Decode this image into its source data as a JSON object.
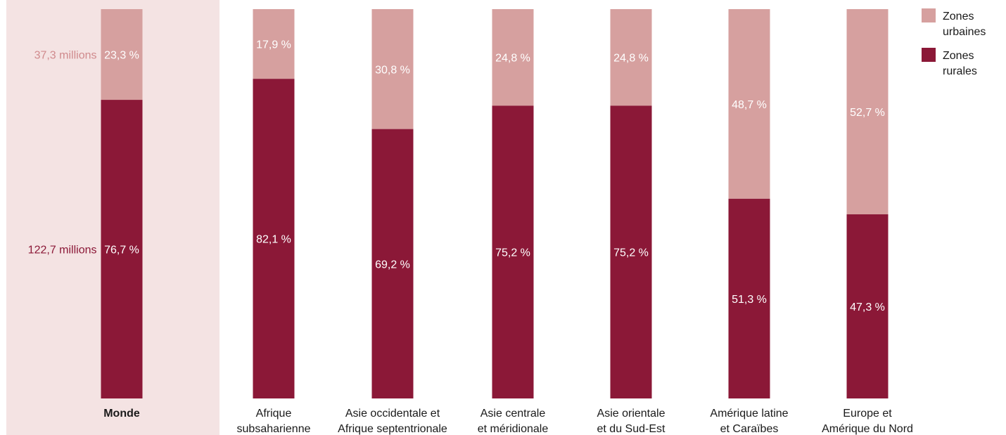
{
  "chart_data": {
    "type": "bar",
    "stacked": true,
    "normalized": true,
    "categories": [
      [
        "Monde"
      ],
      [
        "Afrique",
        "subsaharienne"
      ],
      [
        "Asie occidentale et",
        "Afrique septentrionale"
      ],
      [
        "Asie centrale",
        "et méridionale"
      ],
      [
        "Asie orientale",
        "et du Sud-Est"
      ],
      [
        "Amérique latine",
        "et Caraïbes"
      ],
      [
        "Europe et",
        "Amérique du Nord"
      ]
    ],
    "highlighted_category": "Monde",
    "series": [
      {
        "name": "Zones rurales",
        "color": "#8b1837",
        "values": [
          76.7,
          82.1,
          69.2,
          75.2,
          75.2,
          51.3,
          47.3
        ],
        "labels": [
          "76,7 %",
          "82,1 %",
          "69,2 %",
          "75,2 %",
          "75,2 %",
          "51,3 %",
          "47,3 %"
        ]
      },
      {
        "name": "Zones urbaines",
        "color": "#d6a09f",
        "values": [
          23.3,
          17.9,
          30.8,
          24.8,
          24.8,
          48.7,
          52.7
        ],
        "labels": [
          "23,3 %",
          "17,9 %",
          "30,8 %",
          "24,8 %",
          "24,8 %",
          "48,7 %",
          "52,7 %"
        ]
      }
    ],
    "absolute_labels": {
      "urban": "37,3 millions",
      "rural": "122,7 millions"
    },
    "legend": {
      "position": "top-right",
      "items": [
        {
          "lines": [
            "Zones",
            "urbaines"
          ],
          "color": "#d6a09f"
        },
        {
          "lines": [
            "Zones",
            "rurales"
          ],
          "color": "#8b1837"
        }
      ]
    },
    "ylim": [
      0,
      100
    ],
    "highlight_color": "#f4e3e3",
    "urban_abs_color": "#d08a8d",
    "rural_abs_color": "#8b1837"
  }
}
